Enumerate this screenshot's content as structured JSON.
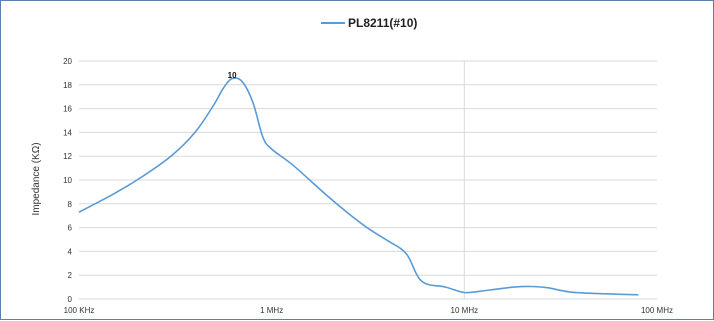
{
  "chart_data": {
    "type": "line",
    "title": "",
    "xlabel": "",
    "ylabel": "Impedance (KΩ)",
    "x_scale": "log",
    "x_unit": "Hz",
    "xlim": [
      100000,
      100000000
    ],
    "ylim": [
      0,
      20
    ],
    "y_ticks": [
      0,
      2,
      4,
      6,
      8,
      10,
      12,
      14,
      16,
      18,
      20
    ],
    "x_ticks": [
      {
        "value": 100000,
        "label": "100 KHz"
      },
      {
        "value": 1000000,
        "label": "1 MHz"
      },
      {
        "value": 10000000,
        "label": "10 MHz"
      },
      {
        "value": 100000000,
        "label": "100 MHz"
      }
    ],
    "grid": {
      "horizontal": true,
      "vertical_major": true
    },
    "legend": {
      "position": "top",
      "entries": [
        "PL8211(#10)"
      ]
    },
    "colors": {
      "series": "#5b9bd5",
      "grid": "#d9d9d9",
      "border": "#5b7fae"
    },
    "series": [
      {
        "name": "PL8211(#10)",
        "x": [
          100000,
          150000,
          200000,
          300000,
          400000,
          500000,
          560000,
          620000,
          700000,
          800000,
          900000,
          1000000,
          1300000,
          2000000,
          3000000,
          4000000,
          5000000,
          6000000,
          8000000,
          10000000,
          12000000,
          15000000,
          18000000,
          22000000,
          27000000,
          35000000,
          50000000,
          80000000
        ],
        "values": [
          7.3,
          8.8,
          10.0,
          12.0,
          14.0,
          16.3,
          17.7,
          18.5,
          18.3,
          16.5,
          13.6,
          12.6,
          11.2,
          8.5,
          6.2,
          4.9,
          3.8,
          1.5,
          1.0,
          0.55,
          0.65,
          0.85,
          1.0,
          1.05,
          0.95,
          0.6,
          0.45,
          0.35
        ]
      }
    ],
    "annotations": [
      {
        "text": "10",
        "x": 620000,
        "y": 18.5
      }
    ]
  }
}
